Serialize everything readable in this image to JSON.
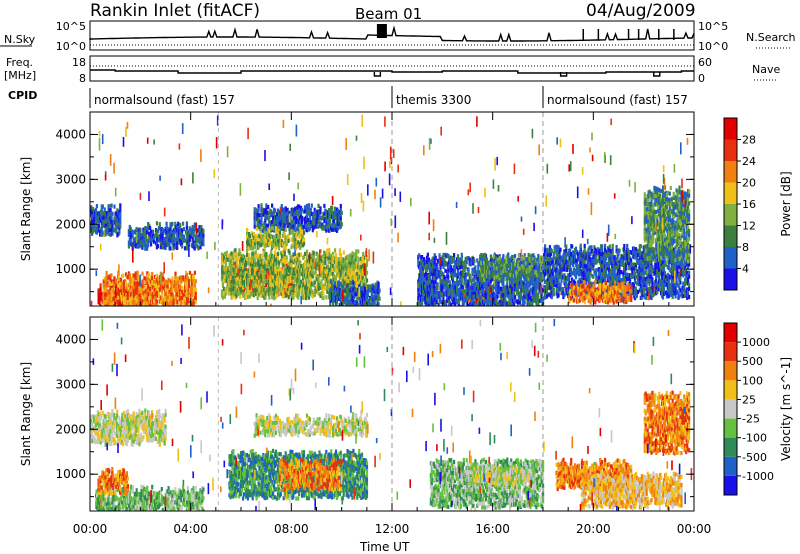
{
  "header": {
    "station": "Rankin Inlet (fitACF)",
    "beam": "Beam 01",
    "date": "04/Aug/2009"
  },
  "panels": {
    "nsky": {
      "label": "N.Sky",
      "tick_top": "10^5",
      "tick_bottom": "10^0",
      "right_tick_top": "10^5",
      "right_tick_bottom": "10^0",
      "right_label": "N.Search"
    },
    "freq": {
      "label_line1": "Freq.",
      "label_line2": "[MHz]",
      "tick_top": "18",
      "tick_bottom": "8",
      "right_tick_top": "60",
      "right_tick_bottom": "0",
      "right_label": "Nave"
    },
    "cpid": {
      "label": "CPID",
      "segments": [
        {
          "name": "normalsound (fast) 157",
          "start_h": 0,
          "end_h": 12
        },
        {
          "name": "themis 3300",
          "start_h": 12,
          "end_h": 18
        },
        {
          "name": "normalsound (fast) 157",
          "start_h": 18,
          "end_h": 24
        }
      ]
    }
  },
  "chart_data": [
    {
      "type": "heatmap",
      "title": "",
      "ylabel": "Slant Range [km]",
      "xlabel": "",
      "xlim": [
        0,
        24
      ],
      "ylim": [
        180,
        4500
      ],
      "yticks": [
        "1000",
        "2000",
        "3000",
        "4000"
      ],
      "xticks": [
        "00:00",
        "04:00",
        "08:00",
        "12:00",
        "16:00",
        "20:00",
        "00:00"
      ],
      "colorbar": {
        "label": "Power [dB]",
        "ticks": [
          "28",
          "24",
          "20",
          "16",
          "12",
          "8",
          "4"
        ],
        "colors": [
          "#1a10e8",
          "#2060c8",
          "#3c8040",
          "#80b040",
          "#f0c018",
          "#f08010",
          "#e83010",
          "#e00000"
        ]
      },
      "regions": [
        {
          "t0": 0.3,
          "t1": 2.6,
          "r0": 200,
          "r1": 620,
          "level": 7
        },
        {
          "t0": 0.5,
          "t1": 4.2,
          "r0": 200,
          "r1": 900,
          "level": 5
        },
        {
          "t0": 0.0,
          "t1": 1.2,
          "r0": 1800,
          "r1": 2400,
          "level": 1
        },
        {
          "t0": 1.5,
          "t1": 4.5,
          "r0": 1500,
          "r1": 2000,
          "level": 1
        },
        {
          "t0": 5.5,
          "t1": 8.0,
          "r0": 480,
          "r1": 1100,
          "level": 6
        },
        {
          "t0": 5.2,
          "t1": 11.0,
          "r0": 400,
          "r1": 1400,
          "level": 3
        },
        {
          "t0": 6.5,
          "t1": 10.0,
          "r0": 1900,
          "r1": 2400,
          "level": 1
        },
        {
          "t0": 6.2,
          "t1": 8.5,
          "r0": 1500,
          "r1": 1900,
          "level": 3
        },
        {
          "t0": 9.5,
          "t1": 11.5,
          "r0": 200,
          "r1": 700,
          "level": 1
        },
        {
          "t0": 14.8,
          "t1": 16.0,
          "r0": 300,
          "r1": 650,
          "level": 6
        },
        {
          "t0": 13.0,
          "t1": 18.0,
          "r0": 200,
          "r1": 1300,
          "level": 1
        },
        {
          "t0": 15.5,
          "t1": 18.0,
          "r0": 800,
          "r1": 1300,
          "level": 2
        },
        {
          "t0": 18.0,
          "t1": 23.8,
          "r0": 400,
          "r1": 1500,
          "level": 1
        },
        {
          "t0": 19.0,
          "t1": 21.5,
          "r0": 300,
          "r1": 700,
          "level": 5
        },
        {
          "t0": 22.0,
          "t1": 23.8,
          "r0": 1200,
          "r1": 2800,
          "level": 2
        }
      ]
    },
    {
      "type": "heatmap",
      "title": "",
      "ylabel": "Slant Range [km]",
      "xlabel": "Time UT",
      "xlim": [
        0,
        24
      ],
      "ylim": [
        180,
        4500
      ],
      "yticks": [
        "1000",
        "2000",
        "3000",
        "4000"
      ],
      "xticks": [
        "00:00",
        "04:00",
        "08:00",
        "12:00",
        "16:00",
        "20:00",
        "00:00"
      ],
      "colorbar": {
        "label": "Velocity [m s^-1]",
        "ticks": [
          "1000",
          "500",
          "100",
          "25",
          "-25",
          "-100",
          "-500",
          "-1000"
        ],
        "colors": [
          "#1a10e8",
          "#2060c8",
          "#2e8b57",
          "#66c040",
          "#c8c8c8",
          "#f0c018",
          "#f08010",
          "#e83010",
          "#e00000"
        ]
      },
      "regions": [
        {
          "t0": 0.2,
          "t1": 4.5,
          "r0": 200,
          "r1": 700,
          "level": 3
        },
        {
          "t0": 0.3,
          "t1": 1.5,
          "r0": 600,
          "r1": 1100,
          "level": 6
        },
        {
          "t0": 0.0,
          "t1": 3.0,
          "r0": 1700,
          "r1": 2400,
          "level": 4
        },
        {
          "t0": 5.5,
          "t1": 11.0,
          "r0": 500,
          "r1": 1500,
          "level": 2
        },
        {
          "t0": 7.5,
          "t1": 10.0,
          "r0": 700,
          "r1": 1300,
          "level": 6
        },
        {
          "t0": 6.5,
          "t1": 11.0,
          "r0": 1900,
          "r1": 2300,
          "level": 4
        },
        {
          "t0": 13.5,
          "t1": 18.0,
          "r0": 300,
          "r1": 1300,
          "level": 3
        },
        {
          "t0": 15.0,
          "t1": 17.5,
          "r0": 800,
          "r1": 1200,
          "level": 4
        },
        {
          "t0": 18.5,
          "t1": 21.5,
          "r0": 700,
          "r1": 1300,
          "level": 6
        },
        {
          "t0": 19.5,
          "t1": 23.5,
          "r0": 300,
          "r1": 1000,
          "level": 5
        },
        {
          "t0": 22.0,
          "t1": 23.8,
          "r0": 1500,
          "r1": 2800,
          "level": 6
        }
      ]
    }
  ]
}
